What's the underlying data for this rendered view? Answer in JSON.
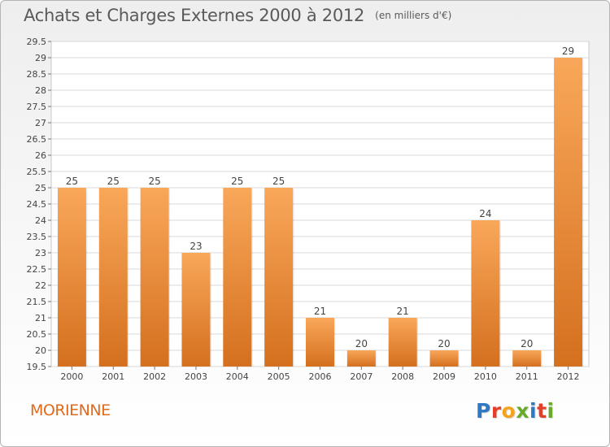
{
  "header": {
    "title": "Achats et Charges Externes 2000 à 2012",
    "unit": "(en milliers d'€)"
  },
  "footer": {
    "place": "MORIENNE",
    "logo": "Proxiti"
  },
  "colors": {
    "bar_top": "#f9a75a",
    "bar_bottom": "#d4701e",
    "place_text": "#e06a1c",
    "logo_letters": [
      "#2f78c4",
      "#e2402b",
      "#f5a31a",
      "#6aaa2a",
      "#2f78c4",
      "#e2402b",
      "#6aaa2a"
    ]
  },
  "chart_data": {
    "type": "bar",
    "title": "Achats et Charges Externes 2000 à 2012",
    "categories": [
      "2000",
      "2001",
      "2002",
      "2003",
      "2004",
      "2005",
      "2006",
      "2007",
      "2008",
      "2009",
      "2010",
      "2011",
      "2012"
    ],
    "values": [
      25,
      25,
      25,
      23,
      25,
      25,
      21,
      20,
      21,
      20,
      24,
      20,
      29
    ],
    "ylim": [
      19.5,
      29.5
    ],
    "yticks": [
      "19.5",
      "20",
      "20.5",
      "21",
      "21.5",
      "22",
      "22.5",
      "23",
      "23.5",
      "24",
      "24.5",
      "25",
      "25.5",
      "26",
      "26.5",
      "27",
      "27.5",
      "28",
      "28.5",
      "29",
      "29.5"
    ],
    "grid": true,
    "xlabel": "",
    "ylabel": ""
  }
}
